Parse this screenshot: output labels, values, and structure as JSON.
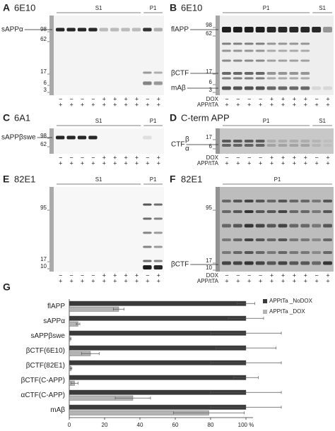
{
  "panels": [
    {
      "label": "A",
      "antibody": "6E10",
      "markers": [
        "98",
        "62",
        "17",
        "6",
        "3"
      ],
      "bands": [
        "sAPPα"
      ],
      "groups": [
        "S1",
        "P1"
      ],
      "dox": [
        "−",
        "−",
        "−",
        "−",
        "+",
        "+",
        "+",
        "+",
        "−",
        "+"
      ],
      "app": [
        "+",
        "+",
        "+",
        "+",
        "+",
        "+",
        "+",
        "+",
        "+",
        "+"
      ]
    },
    {
      "label": "B",
      "antibody": "6E10",
      "markers": [
        "98",
        "62",
        "17",
        "6",
        "3"
      ],
      "bands": [
        "flAPP",
        "βCTF",
        "mAβ"
      ],
      "groups": [
        "P1",
        "S1"
      ],
      "dox": [
        "−",
        "−",
        "−",
        "−",
        "+",
        "+",
        "+",
        "+",
        "−",
        "+"
      ],
      "app": [
        "+",
        "+",
        "+",
        "+",
        "+",
        "+",
        "+",
        "+",
        "+",
        "+"
      ],
      "row_labels": [
        "DOX",
        "APP/tTA"
      ]
    },
    {
      "label": "C",
      "antibody": "6A1",
      "markers": [
        "98",
        "62"
      ],
      "bands": [
        "sAPPβswe"
      ],
      "groups": [
        "S1",
        "P1"
      ],
      "dox": [
        "−",
        "−",
        "−",
        "−",
        "+",
        "+",
        "+",
        "+",
        "−",
        "+"
      ],
      "app": [
        "+",
        "+",
        "+",
        "+",
        "+",
        "+",
        "+",
        "+",
        "+",
        "+"
      ]
    },
    {
      "label": "D",
      "antibody": "C-term APP",
      "markers": [
        "17",
        "6"
      ],
      "bands": [
        "CTF",
        "β",
        "α"
      ],
      "groups": [
        "P1",
        "S1"
      ],
      "dox": [
        "−",
        "−",
        "−",
        "−",
        "+",
        "+",
        "+",
        "+",
        "−",
        "+"
      ],
      "app": [
        "+",
        "+",
        "+",
        "+",
        "+",
        "+",
        "+",
        "+",
        "+",
        "+"
      ],
      "row_labels": [
        "DOX",
        "APP/tTA"
      ]
    },
    {
      "label": "E",
      "antibody": "82E1",
      "markers": [
        "95",
        "17",
        "10"
      ],
      "bands": [],
      "groups": [
        "S1",
        "P1"
      ],
      "dox": [
        "−",
        "−",
        "−",
        "−",
        "+",
        "+",
        "+",
        "+",
        "−",
        "+"
      ],
      "app": [
        "+",
        "+",
        "+",
        "+",
        "+",
        "+",
        "+",
        "+",
        "+",
        "+"
      ]
    },
    {
      "label": "F",
      "antibody": "82E1",
      "markers": [
        "95",
        "17",
        "10"
      ],
      "bands": [
        "βCTF"
      ],
      "groups": [
        "P1"
      ],
      "dox": [
        "−",
        "−",
        "−",
        "−",
        "+",
        "+",
        "+",
        "+",
        "−",
        "+"
      ],
      "app": [
        "+",
        "+",
        "+",
        "+",
        "+",
        "+",
        "+",
        "+",
        "+",
        "+"
      ],
      "row_labels": [
        "DOX",
        "APP/tTA"
      ]
    }
  ],
  "chart_data": {
    "type": "bar",
    "label": "G",
    "categories": [
      "flAPP",
      "sAPPα",
      "sAPPβswe",
      "βCTF(6E10)",
      "βCTF(82E1)",
      "βCTF(C-APP)",
      "αCTF(C-APP)",
      "mAβ"
    ],
    "series": [
      {
        "name": "APPtTa _NoDOX",
        "color": "#3a3a3a",
        "values": [
          100,
          100,
          100,
          100,
          100,
          100,
          100,
          100
        ],
        "errors": [
          5,
          10,
          20,
          17,
          20,
          7,
          20,
          20
        ]
      },
      {
        "name": "APPtTa _DOX",
        "color": "#b4b4b4",
        "values": [
          28,
          5,
          0.5,
          12,
          1,
          3,
          36,
          79
        ],
        "errors": [
          3,
          1,
          0.5,
          5,
          0.5,
          2,
          10,
          20
        ]
      }
    ],
    "xlim": [
      0,
      100
    ],
    "xticks": [
      0,
      20,
      40,
      60,
      80,
      {
        "value": 100,
        "label": "100 %"
      }
    ],
    "legend": "upper right"
  }
}
